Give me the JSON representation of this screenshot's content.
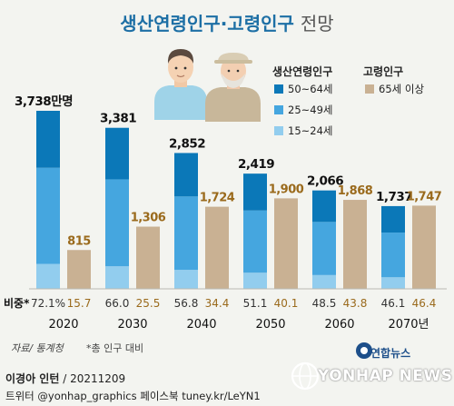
{
  "header": {
    "title_main": "생산연령인구·고령인구",
    "title_sub": "전망"
  },
  "legend": {
    "group1_title": "생산연령인구",
    "group2_title": "고령인구",
    "items": [
      {
        "label": "50~64세",
        "color": "#0b78b8"
      },
      {
        "label": "25~49세",
        "color": "#45a6df"
      },
      {
        "label": "15~24세",
        "color": "#92cdee"
      },
      {
        "label": "65세 이상",
        "color": "#c9b193"
      }
    ]
  },
  "chart_data": {
    "type": "bar",
    "categories": [
      "2020",
      "2030",
      "2040",
      "2050",
      "2060",
      "2070년"
    ],
    "series": [
      {
        "name": "생산연령인구",
        "values": [
          3738,
          3381,
          2852,
          2419,
          2066,
          1737
        ],
        "color": "#45a6df"
      },
      {
        "name": "고령인구",
        "values": [
          815,
          1306,
          1724,
          1900,
          1868,
          1747
        ],
        "color": "#c9b193"
      }
    ],
    "value_labels": {
      "working": [
        "3,738만명",
        "3,381",
        "2,852",
        "2,419",
        "2,066",
        "1,737"
      ],
      "elderly": [
        "815",
        "1,306",
        "1,724",
        "1,900",
        "1,868",
        "1,747"
      ]
    },
    "share": {
      "label": "비중*",
      "working": [
        "72.1%",
        "66.0",
        "56.8",
        "51.1",
        "48.5",
        "46.1"
      ],
      "elderly": [
        "15.7",
        "25.5",
        "34.4",
        "40.1",
        "43.8",
        "46.4"
      ]
    },
    "ylim": [
      0,
      3738
    ]
  },
  "footer": {
    "source": "자료/ 통계청",
    "footnote": "*총 인구 대비",
    "credit_name": "이경아 인턴",
    "credit_date": "/ 20211209",
    "social": "트위터 @yonhap_graphics  페이스북 tuney.kr/LeYN1",
    "yonhap_news": "연합뉴스",
    "agency": "YONHAP NEWS"
  }
}
